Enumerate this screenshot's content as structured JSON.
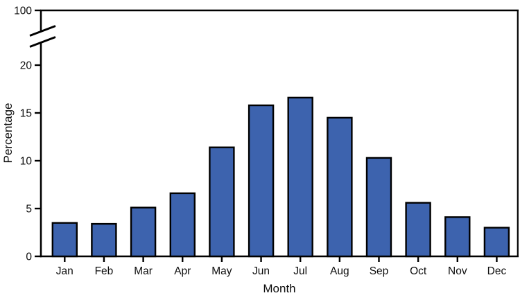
{
  "chart_data": {
    "type": "bar",
    "title": "",
    "xlabel": "Month",
    "ylabel": "Percentage",
    "categories": [
      "Jan",
      "Feb",
      "Mar",
      "Apr",
      "May",
      "Jun",
      "Jul",
      "Aug",
      "Sep",
      "Oct",
      "Nov",
      "Dec"
    ],
    "values": [
      3.5,
      3.4,
      5.1,
      6.6,
      11.4,
      15.8,
      16.6,
      14.5,
      10.3,
      5.6,
      4.1,
      3.0
    ],
    "y_ticks": [
      0,
      5,
      10,
      15,
      20
    ],
    "y_break_top_label": "100",
    "ylim_linear_section": [
      0,
      21.8
    ],
    "axis_break": true,
    "grid": false,
    "legend": "none",
    "colors": {
      "bar_fill": "#3d63ae",
      "bar_edge": "#000000",
      "axis": "#000000",
      "background": "#ffffff"
    }
  }
}
